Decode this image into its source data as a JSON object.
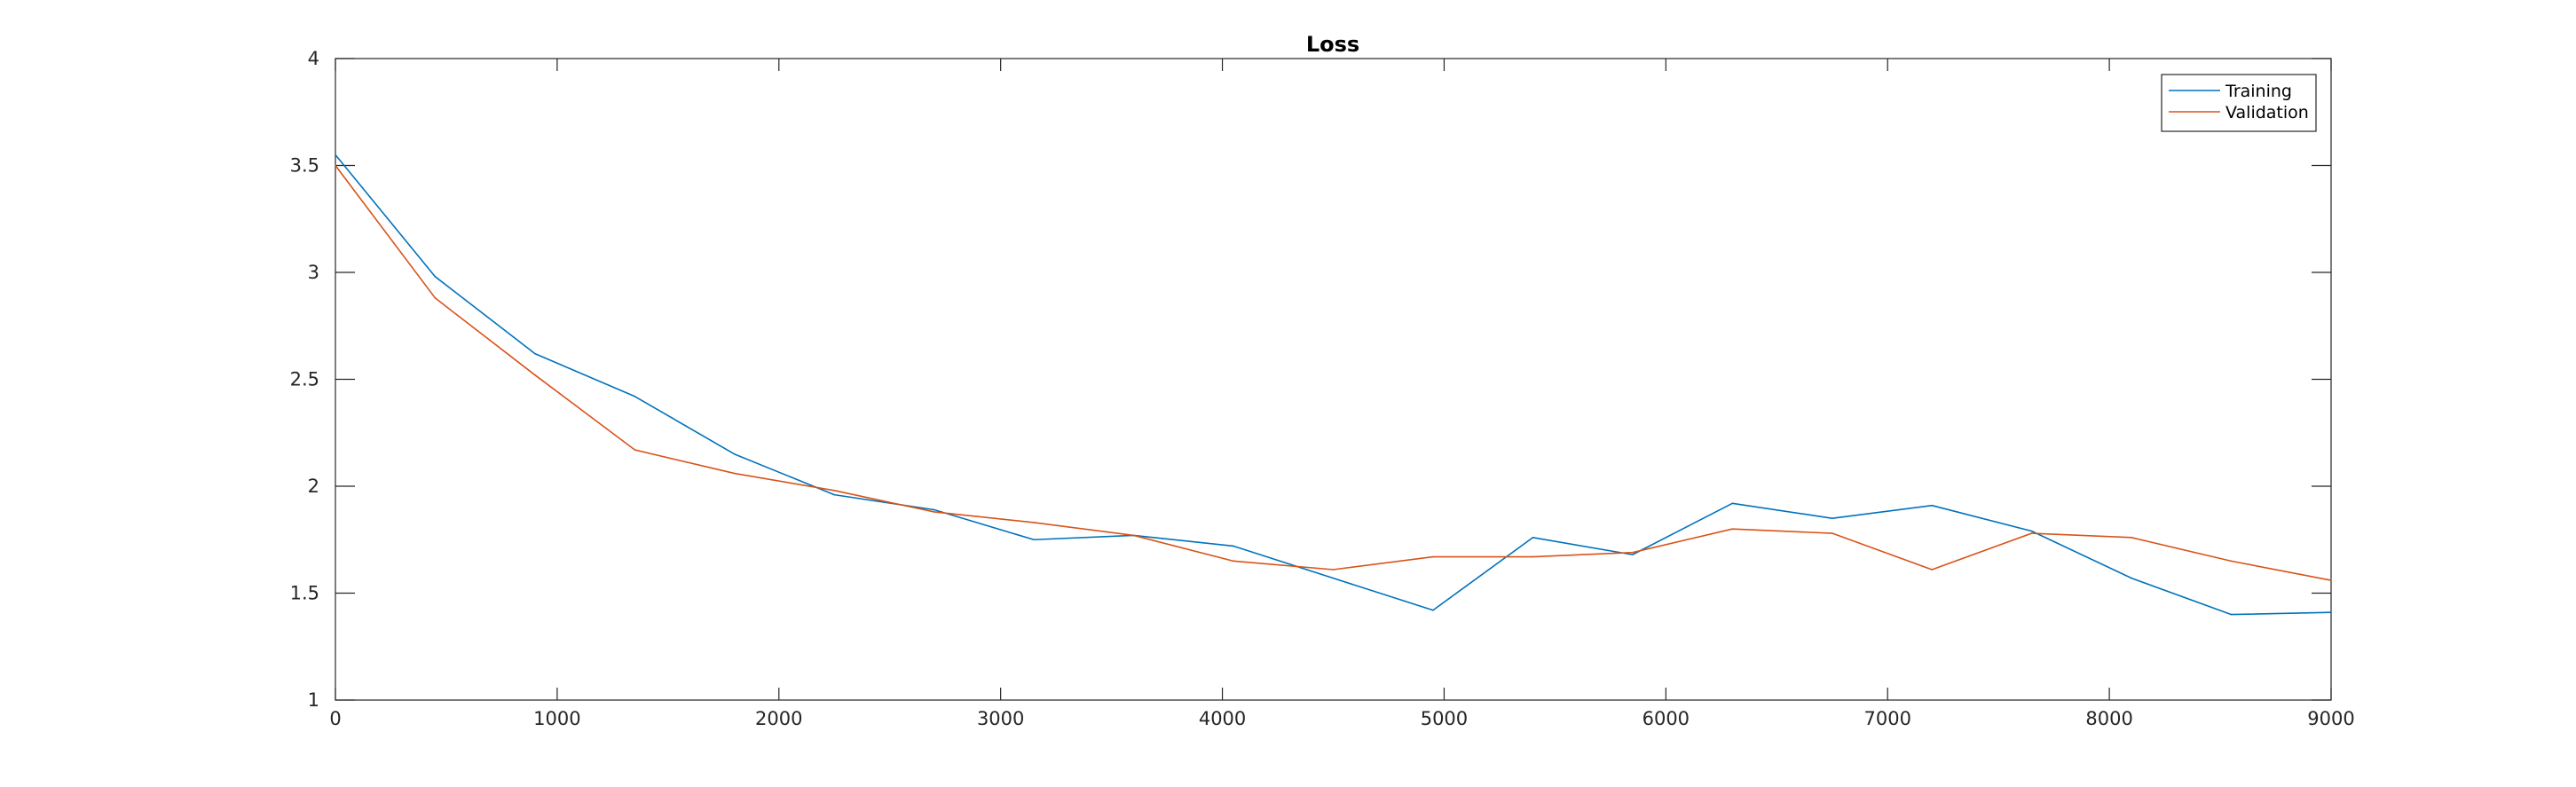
{
  "chart_data": {
    "type": "line",
    "title": "Loss",
    "xlabel": "",
    "ylabel": "",
    "xlim": [
      0,
      9000
    ],
    "ylim": [
      1,
      4
    ],
    "xticks": [
      0,
      1000,
      2000,
      3000,
      4000,
      5000,
      6000,
      7000,
      8000,
      9000
    ],
    "yticks": [
      1,
      1.5,
      2,
      2.5,
      3,
      3.5,
      4
    ],
    "grid": false,
    "legend_position": "top-right",
    "x": [
      0,
      450,
      900,
      1350,
      1800,
      2250,
      2700,
      3150,
      3600,
      4050,
      4500,
      4950,
      5400,
      5850,
      6300,
      6750,
      7200,
      7650,
      8100,
      8550,
      9000
    ],
    "series": [
      {
        "name": "Training",
        "color": "#0072BD",
        "values": [
          3.55,
          2.98,
          2.62,
          2.42,
          2.15,
          1.96,
          1.89,
          1.75,
          1.77,
          1.72,
          1.57,
          1.42,
          1.76,
          1.68,
          1.92,
          1.85,
          1.91,
          1.79,
          1.57,
          1.4,
          1.41
        ]
      },
      {
        "name": "Validation",
        "color": "#D95319",
        "values": [
          3.5,
          2.88,
          2.52,
          2.17,
          2.06,
          1.98,
          1.88,
          1.83,
          1.77,
          1.65,
          1.61,
          1.67,
          1.67,
          1.69,
          1.8,
          1.78,
          1.61,
          1.78,
          1.76,
          1.65,
          1.56
        ]
      }
    ]
  }
}
